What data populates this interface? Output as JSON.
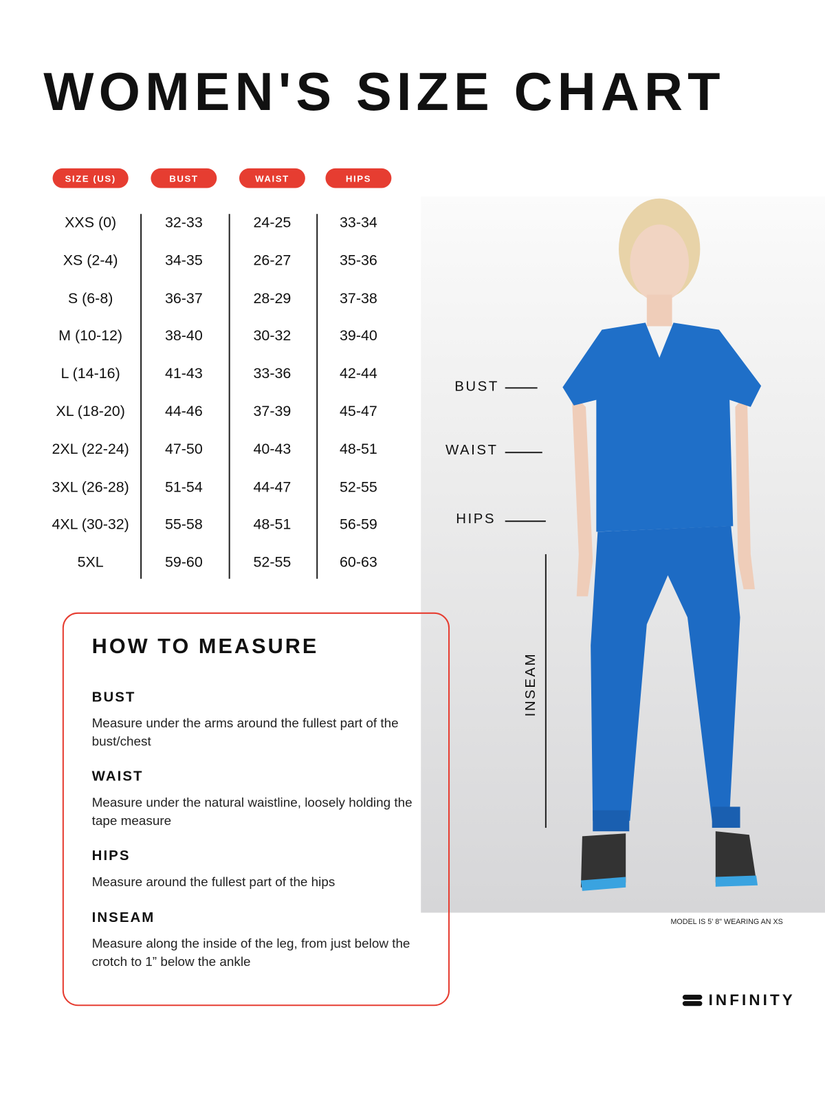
{
  "title": "WOMEN'S SIZE CHART",
  "table": {
    "headers": [
      "SIZE (US)",
      "BUST",
      "WAIST",
      "HIPS"
    ],
    "rows": [
      [
        "XXS (0)",
        "32-33",
        "24-25",
        "33-34"
      ],
      [
        "XS (2-4)",
        "34-35",
        "26-27",
        "35-36"
      ],
      [
        "S (6-8)",
        "36-37",
        "28-29",
        "37-38"
      ],
      [
        "M (10-12)",
        "38-40",
        "30-32",
        "39-40"
      ],
      [
        "L (14-16)",
        "41-43",
        "33-36",
        "42-44"
      ],
      [
        "XL (18-20)",
        "44-46",
        "37-39",
        "45-47"
      ],
      [
        "2XL (22-24)",
        "47-50",
        "40-43",
        "48-51"
      ],
      [
        "3XL (26-28)",
        "51-54",
        "44-47",
        "52-55"
      ],
      [
        "4XL (30-32)",
        "55-58",
        "48-51",
        "56-59"
      ],
      [
        "5XL",
        "59-60",
        "52-55",
        "60-63"
      ]
    ]
  },
  "figure_labels": {
    "bust": "BUST",
    "waist": "WAIST",
    "hips": "HIPS",
    "inseam": "INSEAM"
  },
  "how_to": {
    "title": "HOW TO MEASURE",
    "sections": [
      {
        "heading": "BUST",
        "text": "Measure under the arms around the fullest part of the bust/chest"
      },
      {
        "heading": "WAIST",
        "text": "Measure under the natural waistline, loosely holding the tape measure"
      },
      {
        "heading": "HIPS",
        "text": "Measure around the fullest part of the hips"
      },
      {
        "heading": "INSEAM",
        "text": "Measure along the inside of the leg, from just below the crotch to 1” below the ankle"
      }
    ]
  },
  "model_note": "MODEL IS 5' 8\" WEARING AN XS",
  "brand": "INFINITY",
  "colors": {
    "accent": "#e63d31",
    "scrubs": "#1f6fc8"
  }
}
